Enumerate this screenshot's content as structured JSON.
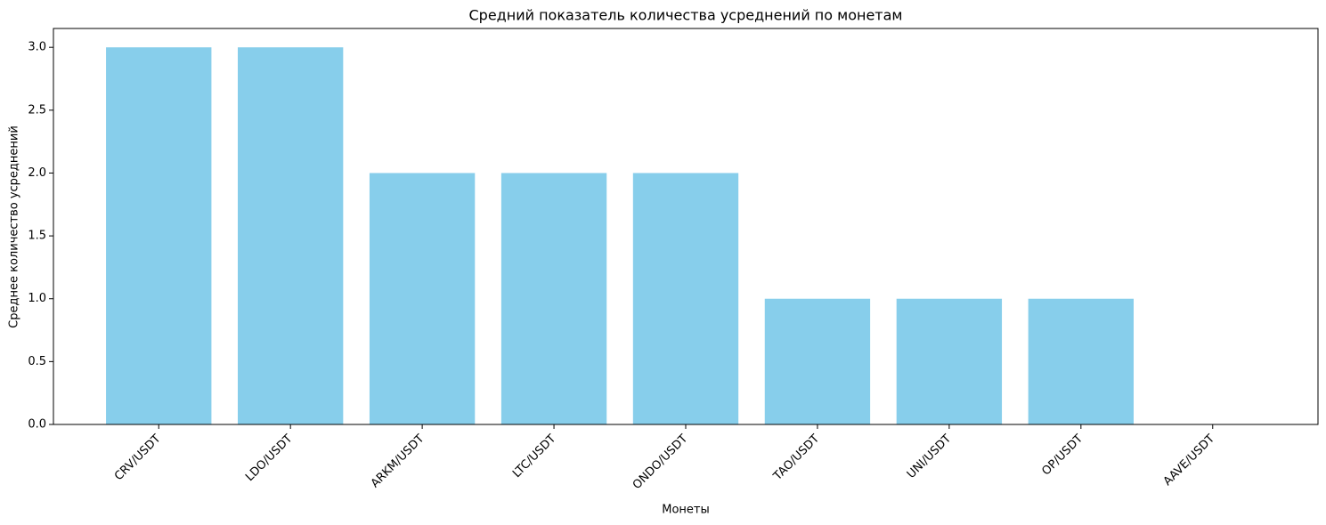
{
  "chart_data": {
    "type": "bar",
    "title": "Средний показатель количества усреднений по монетам",
    "x_label": "Монеты",
    "y_label": "Среднее количество усреднений",
    "categories": [
      "CRV/USDT",
      "LDO/USDT",
      "ARKM/USDT",
      "LTC/USDT",
      "ONDO/USDT",
      "TAO/USDT",
      "UNI/USDT",
      "OP/USDT",
      "AAVE/USDT"
    ],
    "values": [
      3,
      3,
      2,
      2,
      2,
      1,
      1,
      1,
      0
    ],
    "color": "#87ceeb",
    "ylim": [
      0,
      3.15
    ],
    "yticks": [
      {
        "value": 0,
        "label": "0.0"
      },
      {
        "value": 0.5,
        "label": "0.5"
      },
      {
        "value": 1,
        "label": "1.0"
      },
      {
        "value": 1.5,
        "label": "1.5"
      },
      {
        "value": 2,
        "label": "2.0"
      },
      {
        "value": 2.5,
        "label": "2.5"
      },
      {
        "value": 3,
        "label": "3.0"
      }
    ],
    "grid": false
  }
}
